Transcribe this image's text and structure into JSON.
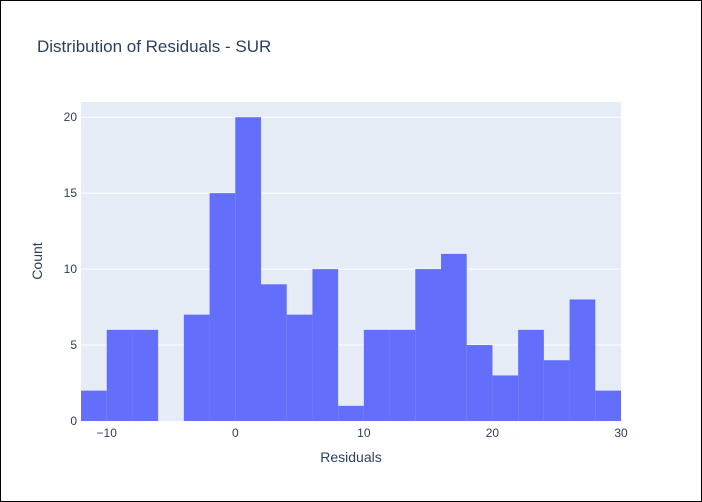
{
  "chart_data": {
    "type": "histogram",
    "title": "Distribution of Residuals - SUR",
    "xlabel": "Residuals",
    "ylabel": "Count",
    "xlim": [
      -12,
      30
    ],
    "ylim": [
      0,
      21
    ],
    "bin_width": 2,
    "bins": [
      {
        "start": -12,
        "count": 2
      },
      {
        "start": -10,
        "count": 6
      },
      {
        "start": -8,
        "count": 6
      },
      {
        "start": -6,
        "count": 0
      },
      {
        "start": -4,
        "count": 7
      },
      {
        "start": -2,
        "count": 15
      },
      {
        "start": 0,
        "count": 20
      },
      {
        "start": 2,
        "count": 9
      },
      {
        "start": 4,
        "count": 7
      },
      {
        "start": 6,
        "count": 10
      },
      {
        "start": 8,
        "count": 1
      },
      {
        "start": 10,
        "count": 6
      },
      {
        "start": 12,
        "count": 6
      },
      {
        "start": 14,
        "count": 10
      },
      {
        "start": 16,
        "count": 11
      },
      {
        "start": 18,
        "count": 5
      },
      {
        "start": 20,
        "count": 3
      },
      {
        "start": 22,
        "count": 6
      },
      {
        "start": 24,
        "count": 4
      },
      {
        "start": 26,
        "count": 8
      },
      {
        "start": 28,
        "count": 2
      }
    ],
    "x_ticks": [
      -10,
      0,
      10,
      20,
      30
    ],
    "x_tick_labels": [
      "−10",
      "0",
      "10",
      "20",
      "30"
    ],
    "y_ticks": [
      0,
      5,
      10,
      15,
      20
    ],
    "y_tick_labels": [
      "0",
      "5",
      "10",
      "15",
      "20"
    ],
    "grid": true,
    "colors": {
      "bar": "#636efa",
      "plot_bg": "#e5ecf6",
      "grid": "#ffffff",
      "text": "#2a3f5f"
    }
  }
}
